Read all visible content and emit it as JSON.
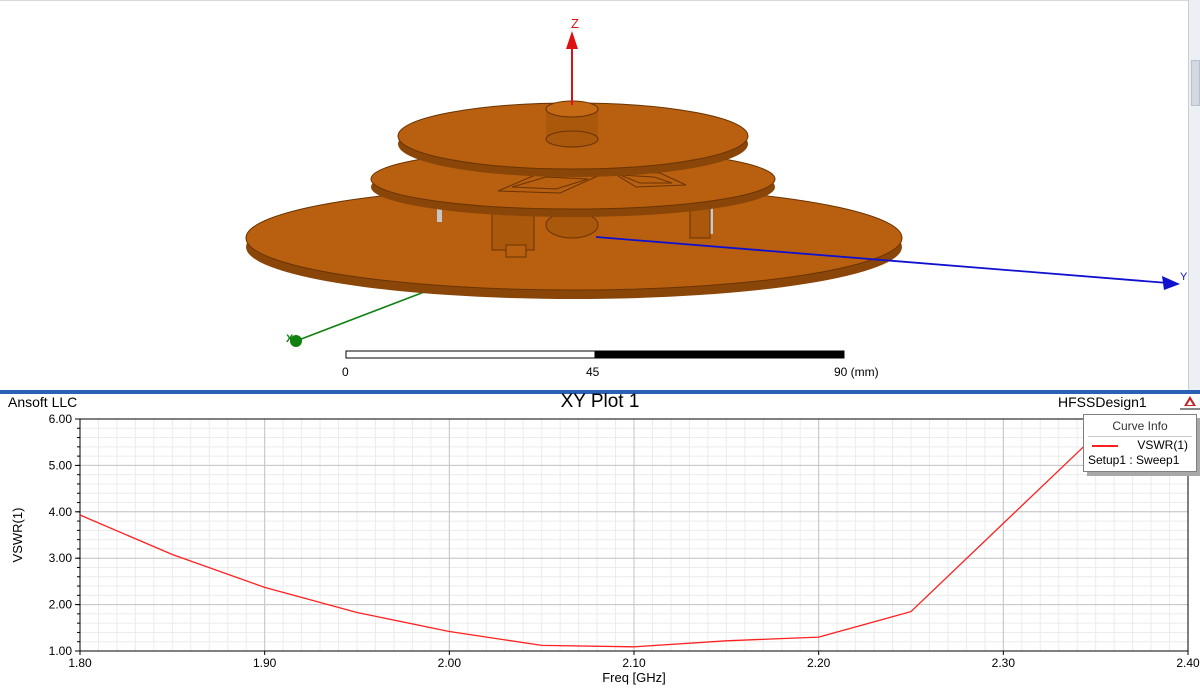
{
  "viewport": {
    "axis_labels": {
      "z": "Z",
      "y": "Y",
      "x": "X"
    },
    "scale_bar": {
      "labels": [
        "0",
        "45",
        "90 (mm)"
      ]
    },
    "colors": {
      "model": "#b8600f",
      "model_edge": "#6a3300",
      "axis_z": "#e01010",
      "axis_y": "#1010d0",
      "axis_x": "#108010"
    }
  },
  "plot": {
    "company": "Ansoft LLC",
    "design": "HFSSDesign1",
    "logo_icon": "ansoft-logo-icon",
    "curve_info": {
      "title": "Curve Info",
      "name": "VSWR(1)",
      "setup": "Setup1 : Sweep1"
    }
  },
  "chart_data": {
    "type": "line",
    "title": "XY Plot 1",
    "xlabel": "Freq [GHz]",
    "ylabel": "VSWR(1)",
    "xlim": [
      1.8,
      2.4
    ],
    "ylim": [
      1.0,
      6.0
    ],
    "x_ticks": [
      "1.80",
      "1.90",
      "2.00",
      "2.10",
      "2.20",
      "2.30",
      "2.40"
    ],
    "y_ticks": [
      "1.00",
      "2.00",
      "3.00",
      "4.00",
      "5.00",
      "6.00"
    ],
    "grid": true,
    "legend": "top-right",
    "series": [
      {
        "name": "VSWR(1)",
        "color": "#ff2020",
        "x": [
          1.8,
          1.85,
          1.9,
          1.95,
          2.0,
          2.05,
          2.1,
          2.15,
          2.2,
          2.25,
          2.3,
          2.35
        ],
        "y": [
          3.93,
          3.08,
          2.37,
          1.83,
          1.42,
          1.12,
          1.09,
          1.22,
          1.3,
          1.85,
          3.75,
          5.65
        ]
      }
    ]
  }
}
